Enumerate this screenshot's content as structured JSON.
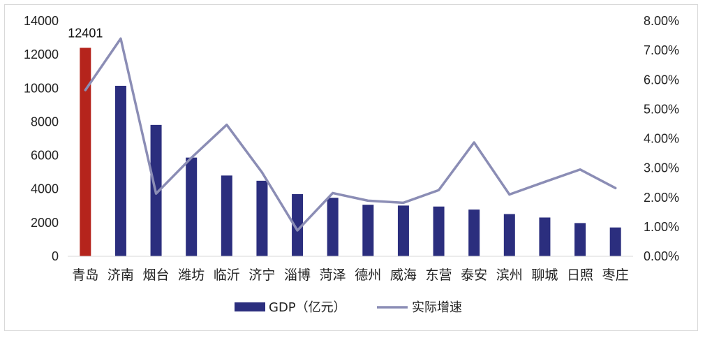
{
  "chart_data": {
    "type": "bar",
    "categories": [
      "青岛",
      "济南",
      "烟台",
      "潍坊",
      "临沂",
      "济宁",
      "淄博",
      "菏泽",
      "德州",
      "威海",
      "东营",
      "泰安",
      "滨州",
      "聊城",
      "日照",
      "枣庄"
    ],
    "series": [
      {
        "name": "GDP（亿元）",
        "type": "bar",
        "axis": "left",
        "color": "#2b2e7e",
        "highlight_color": "#b5241c",
        "highlight_index": 0,
        "values": [
          12401,
          10140,
          7816,
          5872,
          4805,
          4493,
          3700,
          3481,
          3066,
          3018,
          2960,
          2780,
          2512,
          2307,
          1977,
          1715
        ]
      },
      {
        "name": "实际增速",
        "type": "line",
        "axis": "right",
        "color": "#8b8db5",
        "values": [
          0.0565,
          0.074,
          0.0213,
          0.0335,
          0.0447,
          0.0285,
          0.0088,
          0.0215,
          0.0189,
          0.0182,
          0.0225,
          0.0387,
          0.021,
          0.0253,
          0.0295,
          0.0232
        ]
      }
    ],
    "data_labels": [
      {
        "index": 0,
        "text": "12401"
      }
    ],
    "y_left": {
      "min": 0,
      "max": 14000,
      "ticks": [
        "0",
        "2000",
        "4000",
        "6000",
        "8000",
        "10000",
        "12000",
        "14000"
      ]
    },
    "y_right": {
      "min": 0,
      "max": 0.08,
      "ticks": [
        "0.00%",
        "1.00%",
        "2.00%",
        "3.00%",
        "4.00%",
        "5.00%",
        "6.00%",
        "7.00%",
        "8.00%"
      ]
    },
    "legend": {
      "position": "bottom"
    },
    "grid": false
  }
}
